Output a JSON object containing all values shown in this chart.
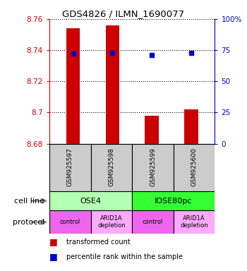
{
  "title": "GDS4826 / ILMN_1690077",
  "samples": [
    "GSM925597",
    "GSM925598",
    "GSM925599",
    "GSM925600"
  ],
  "bar_values": [
    8.754,
    8.756,
    8.698,
    8.702
  ],
  "bar_base": 8.68,
  "blue_percentiles": [
    72,
    73,
    71,
    73
  ],
  "ylim_left": [
    8.68,
    8.76
  ],
  "ylim_right": [
    0,
    100
  ],
  "yticks_left": [
    8.68,
    8.7,
    8.72,
    8.74,
    8.76
  ],
  "yticks_right": [
    0,
    25,
    50,
    75,
    100
  ],
  "ytick_labels_left": [
    "8.68",
    "8.7",
    "8.72",
    "8.74",
    "8.76"
  ],
  "ytick_labels_right": [
    "0",
    "25",
    "50",
    "75",
    "100%"
  ],
  "bar_color": "#cc0000",
  "blue_color": "#0000cc",
  "cell_line_groups": [
    {
      "label": "OSE4",
      "cols": [
        0,
        1
      ],
      "color": "#b3ffb3"
    },
    {
      "label": "IOSE80pc",
      "cols": [
        2,
        3
      ],
      "color": "#33ff33"
    }
  ],
  "protocol_groups": [
    {
      "label": "control",
      "col": 0,
      "color": "#ee66ee"
    },
    {
      "label": "ARID1A\ndepletion",
      "col": 1,
      "color": "#ffaaff"
    },
    {
      "label": "control",
      "col": 2,
      "color": "#ee66ee"
    },
    {
      "label": "ARID1A\ndepletion",
      "col": 3,
      "color": "#ffaaff"
    }
  ],
  "legend_bar_label": "transformed count",
  "legend_blue_label": "percentile rank within the sample",
  "sample_box_color": "#cccccc",
  "left_axis_color": "#cc0000",
  "right_axis_color": "#0000cc",
  "fig_width": 3.5,
  "fig_height": 3.84,
  "dpi": 100
}
